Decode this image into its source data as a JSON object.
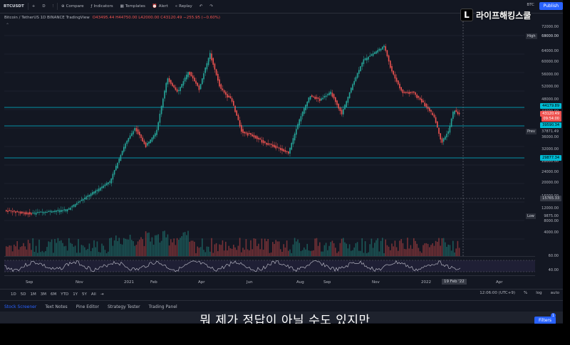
{
  "toolbar": {
    "symbol": "BTCUSDT",
    "interval": "D",
    "compare": "Compare",
    "indicators": "Indicators",
    "templates": "Templates",
    "alert": "Alert",
    "replay": "Replay",
    "ticker_right": "BTC",
    "publish": "Publish"
  },
  "logo": {
    "letter": "L",
    "text": "라이프해킹스쿨"
  },
  "legend": {
    "title": "Bitcoin / TetherUS  1D  BINANCE  TradingView",
    "ohlc": "O43495.44 H44750.00 L42000.00 C43120.49 −255.95 (−0.60%)"
  },
  "price_axis": {
    "labels": [
      "72000.00",
      "68000.00",
      "64000.00",
      "60000.00",
      "56000.00",
      "52000.00",
      "48000.00",
      "44000.00",
      "40000.00",
      "36000.00",
      "32000.00",
      "28000.00",
      "24000.00",
      "20000.00",
      "16000.00",
      "12000.00",
      "8000.00",
      "4000.00",
      "60.00",
      "40.00"
    ],
    "high_label": "High",
    "high_value": "69000.00",
    "prev_label": "Prev",
    "prev_value": "37871.49",
    "low_label": "Low",
    "low_value": "9875.00",
    "crosshair_value": "15765.33",
    "level_top": "44179.89",
    "current_price": "43120.49",
    "current_time": "09:54:00",
    "level_mid": "39590.34",
    "level_low": "29877.34"
  },
  "time_axis": {
    "labels": [
      "Sep",
      "Nov",
      "2021",
      "Feb",
      "Apr",
      "Jun",
      "Aug",
      "Sep",
      "Nov",
      "2022",
      "Apr"
    ],
    "crosshair": "19 Feb '22"
  },
  "ranges": {
    "items": [
      "1D",
      "5D",
      "1M",
      "3M",
      "6M",
      "YTD",
      "1Y",
      "5Y",
      "All"
    ],
    "clock": "12:06:00 (UTC+9)",
    "percent": "%",
    "log": "log",
    "auto": "auto"
  },
  "bottom_tabs": {
    "items": [
      "Stock Screener",
      "Text Notes",
      "Pine Editor",
      "Strategy Tester",
      "Trading Panel"
    ]
  },
  "filters": {
    "label": "Filters",
    "count": "1"
  },
  "subtitle": "뭐 제가 정답이 아닐 수도 있지만",
  "colors": {
    "background": "#131722",
    "up": "#26a69a",
    "down": "#ef5350",
    "level": "#00bcd4",
    "accent": "#2962ff"
  }
}
